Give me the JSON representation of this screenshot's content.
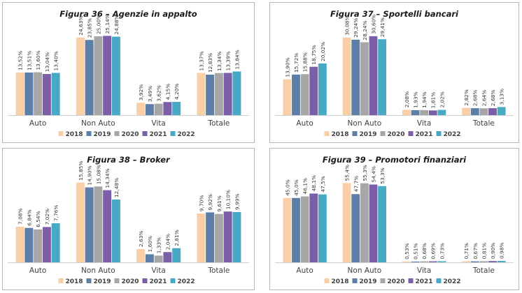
{
  "legend_labels": [
    "2018",
    "2019",
    "2020",
    "2021",
    "2022"
  ],
  "series_colors": [
    "#f9cfa8",
    "#5d7ea6",
    "#a6a6a6",
    "#7b5ea7",
    "#48a9c5"
  ],
  "chart_data": [
    {
      "type": "bar",
      "title": "Figura 36 – Agenzie in appalto",
      "categories": [
        "Auto",
        "Non Auto",
        "Vita",
        "Totale"
      ],
      "series": [
        {
          "name": "2018",
          "values": [
            13.52,
            24.63,
            3.92,
            13.37
          ],
          "labels": [
            "13,52%",
            "24,63%",
            "3,92%",
            "13,37%"
          ]
        },
        {
          "name": "2019",
          "values": [
            13.51,
            23.85,
            3.49,
            12.83
          ],
          "labels": [
            "13,51%",
            "23,85%",
            "3,49%",
            "12,83%"
          ]
        },
        {
          "name": "2020",
          "values": [
            13.6,
            25.0,
            3.62,
            13.34
          ],
          "labels": [
            "13,60%",
            "25,00%",
            "3,62%",
            "13,34%"
          ]
        },
        {
          "name": "2021",
          "values": [
            13.04,
            25.14,
            4.15,
            13.39
          ],
          "labels": [
            "13,04%",
            "25,14%",
            "4,15%",
            "13,39%"
          ]
        },
        {
          "name": "2022",
          "values": [
            13.4,
            24.88,
            4.2,
            13.84
          ],
          "labels": [
            "13,40%",
            "24,88%",
            "4,20%",
            "13,84%"
          ]
        }
      ],
      "ymax": 27,
      "legend": "bottom",
      "grid": false
    },
    {
      "type": "bar",
      "title": "Figura 37 – Sportelli bancari",
      "categories": [
        "Auto",
        "Non Auto",
        "Vita",
        "Totale"
      ],
      "series": [
        {
          "name": "2018",
          "values": [
            13.9,
            30.08,
            2.08,
            2.82
          ],
          "labels": [
            "13,90%",
            "30,08%",
            "2,08%",
            "2,82%"
          ]
        },
        {
          "name": "2019",
          "values": [
            15.72,
            29.24,
            1.93,
            2.68
          ],
          "labels": [
            "15,72%",
            "29,24%",
            "1,93%",
            "2,68%"
          ]
        },
        {
          "name": "2020",
          "values": [
            15.88,
            28.24,
            1.94,
            2.64
          ],
          "labels": [
            "15,88%",
            "28,24%",
            "1,94%",
            "2,64%"
          ]
        },
        {
          "name": "2021",
          "values": [
            18.75,
            30.6,
            1.81,
            2.68
          ],
          "labels": [
            "18,75%",
            "30,60%",
            "1,81%",
            "2,68%"
          ]
        },
        {
          "name": "2022",
          "values": [
            20.02,
            29.41,
            2.02,
            3.13
          ],
          "labels": [
            "20,02%",
            "29,41%",
            "2,02%",
            "3,13%"
          ]
        }
      ],
      "ymax": 33,
      "legend": "bottom",
      "grid": false
    },
    {
      "type": "bar",
      "title": "Figura 38 – Broker",
      "categories": [
        "Auto",
        "Non Auto",
        "Vita",
        "Totale"
      ],
      "series": [
        {
          "name": "2018",
          "values": [
            7.08,
            15.85,
            2.63,
            9.7
          ],
          "labels": [
            "7,08%",
            "15,85%",
            "2,63%",
            "9,70%"
          ]
        },
        {
          "name": "2019",
          "values": [
            6.84,
            14.9,
            1.6,
            9.92
          ],
          "labels": [
            "6,84%",
            "14,90%",
            "1,60%",
            "9,92%"
          ]
        },
        {
          "name": "2020",
          "values": [
            6.54,
            15.08,
            1.33,
            9.61
          ],
          "labels": [
            "6,54%",
            "15,08%",
            "1,33%",
            "9,61%"
          ]
        },
        {
          "name": "2021",
          "values": [
            7.02,
            14.34,
            2.04,
            10.1
          ],
          "labels": [
            "7,02%",
            "14,34%",
            "2,04%",
            "10,10%"
          ]
        },
        {
          "name": "2022",
          "values": [
            7.76,
            12.48,
            2.81,
            9.99
          ],
          "labels": [
            "7,76%",
            "12,48%",
            "2,81%",
            "9,99%"
          ]
        }
      ],
      "ymax": 17.2,
      "legend": "bottom",
      "grid": false
    },
    {
      "type": "bar",
      "title": "Figura 39 – Promotori finanziari",
      "categories": [
        "Auto",
        "Non Auto",
        "Vita",
        "Totale"
      ],
      "series": [
        {
          "name": "2018",
          "values": [
            45.0,
            55.4,
            0.53,
            0.71
          ],
          "labels": [
            "45,0%",
            "55,4%",
            "0,53%",
            "0,71%"
          ]
        },
        {
          "name": "2019",
          "values": [
            45.0,
            47.7,
            0.51,
            0.67
          ],
          "labels": [
            "45,0%",
            "47,7%",
            "0,51%",
            "0,67%"
          ]
        },
        {
          "name": "2020",
          "values": [
            46.1,
            55.3,
            0.68,
            0.81
          ],
          "labels": [
            "46,1%",
            "55,3%",
            "0,68%",
            "0,81%"
          ]
        },
        {
          "name": "2021",
          "values": [
            48.1,
            54.4,
            0.69,
            0.9
          ],
          "labels": [
            "48,1%",
            "54,4%",
            "0,69%",
            "0,90%"
          ]
        },
        {
          "name": "2022",
          "values": [
            47.5,
            53.3,
            0.73,
            0.98
          ],
          "labels": [
            "47,5%",
            "53,3%",
            "0,73%",
            "0,98%"
          ]
        }
      ],
      "ymax": 60.5,
      "legend": "bottom",
      "grid": false
    }
  ]
}
